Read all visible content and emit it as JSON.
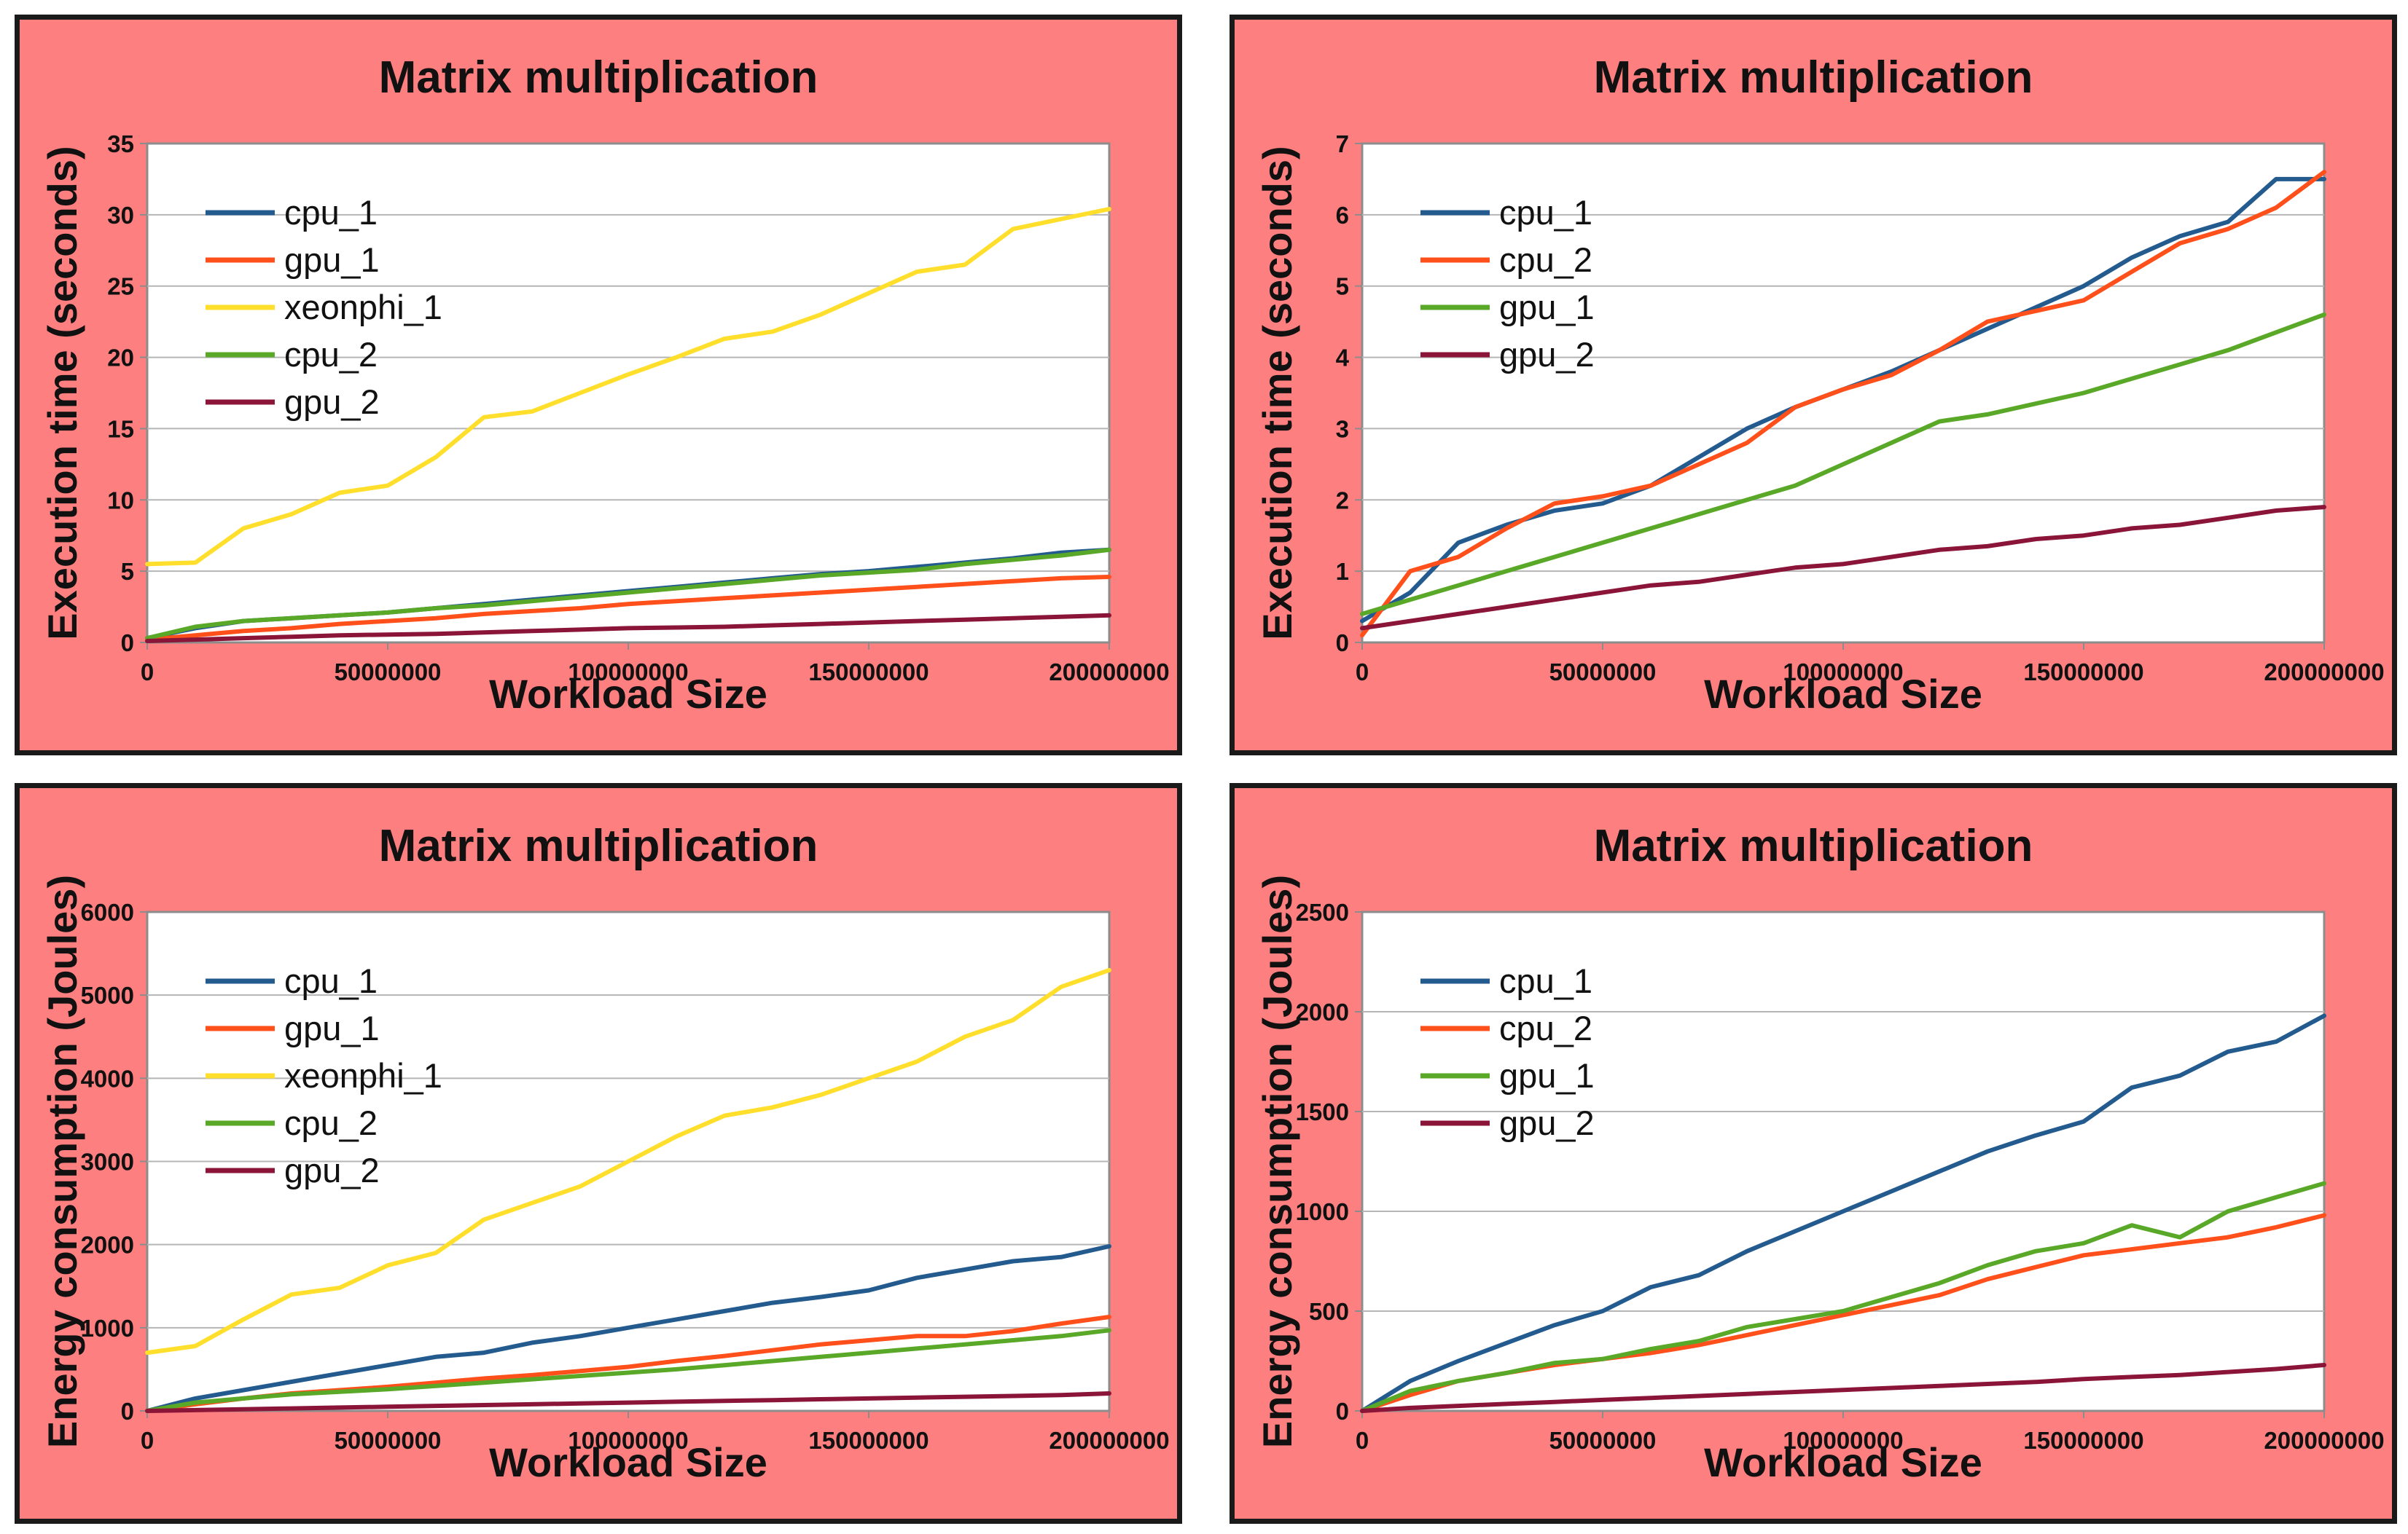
{
  "chart_data": [
    {
      "type": "line",
      "title": "Matrix multiplication",
      "xlabel": "Workload Size",
      "ylabel": "Execution time (seconds)",
      "xlim": [
        0,
        200000000
      ],
      "ylim": [
        0,
        35
      ],
      "xticks": [
        "0",
        "50000000",
        "100000000",
        "150000000",
        "200000000"
      ],
      "yticks": [
        "0",
        "5",
        "10",
        "15",
        "20",
        "25",
        "30",
        "35"
      ],
      "grid": true,
      "legend": "top-left",
      "x": [
        0,
        10000000,
        20000000,
        30000000,
        40000000,
        50000000,
        60000000,
        70000000,
        80000000,
        90000000,
        100000000,
        110000000,
        120000000,
        130000000,
        140000000,
        150000000,
        160000000,
        170000000,
        180000000,
        190000000,
        200000000
      ],
      "series": [
        {
          "name": "cpu_1",
          "color": "#245b8f",
          "values": [
            0.3,
            1.0,
            1.5,
            1.7,
            1.9,
            2.1,
            2.4,
            2.7,
            3.0,
            3.3,
            3.6,
            3.9,
            4.2,
            4.5,
            4.8,
            5.0,
            5.3,
            5.6,
            5.9,
            6.3,
            6.5
          ]
        },
        {
          "name": "gpu_1",
          "color": "#ff4f1a",
          "values": [
            0.2,
            0.5,
            0.8,
            1.0,
            1.3,
            1.5,
            1.7,
            2.0,
            2.2,
            2.4,
            2.7,
            2.9,
            3.1,
            3.3,
            3.5,
            3.7,
            3.9,
            4.1,
            4.3,
            4.5,
            4.6
          ]
        },
        {
          "name": "xeonphi_1",
          "color": "#ffdf2c",
          "values": [
            5.5,
            5.6,
            8.0,
            9.0,
            10.5,
            11.0,
            13.0,
            15.8,
            16.2,
            17.5,
            18.8,
            20.0,
            21.3,
            21.8,
            23.0,
            24.5,
            26.0,
            26.5,
            29.0,
            29.7,
            30.4
          ]
        },
        {
          "name": "cpu_2",
          "color": "#59a827",
          "values": [
            0.3,
            1.1,
            1.5,
            1.7,
            1.9,
            2.1,
            2.4,
            2.6,
            2.9,
            3.2,
            3.5,
            3.8,
            4.1,
            4.4,
            4.7,
            4.9,
            5.1,
            5.5,
            5.8,
            6.1,
            6.5
          ]
        },
        {
          "name": "gpu_2",
          "color": "#8a1538",
          "values": [
            0.1,
            0.2,
            0.3,
            0.4,
            0.5,
            0.55,
            0.6,
            0.7,
            0.8,
            0.9,
            1.0,
            1.05,
            1.1,
            1.2,
            1.3,
            1.4,
            1.5,
            1.6,
            1.7,
            1.8,
            1.9
          ]
        }
      ]
    },
    {
      "type": "line",
      "title": "Matrix multiplication",
      "xlabel": "Workload Size",
      "ylabel": "Execution time (seconds)",
      "xlim": [
        0,
        200000000
      ],
      "ylim": [
        0,
        7
      ],
      "xticks": [
        "0",
        "50000000",
        "100000000",
        "150000000",
        "200000000"
      ],
      "yticks": [
        "0",
        "1",
        "2",
        "3",
        "4",
        "5",
        "6",
        "7"
      ],
      "grid": true,
      "legend": "top-left",
      "x": [
        0,
        10000000,
        20000000,
        30000000,
        40000000,
        50000000,
        60000000,
        70000000,
        80000000,
        90000000,
        100000000,
        110000000,
        120000000,
        130000000,
        140000000,
        150000000,
        160000000,
        170000000,
        180000000,
        190000000,
        200000000
      ],
      "series": [
        {
          "name": "cpu_1",
          "color": "#245b8f",
          "values": [
            0.3,
            0.7,
            1.4,
            1.65,
            1.85,
            1.95,
            2.2,
            2.6,
            3.0,
            3.3,
            3.55,
            3.8,
            4.1,
            4.4,
            4.7,
            5.0,
            5.4,
            5.7,
            5.9,
            6.5,
            6.5
          ]
        },
        {
          "name": "cpu_2",
          "color": "#ff4f1a",
          "values": [
            0.1,
            1.0,
            1.2,
            1.6,
            1.95,
            2.05,
            2.2,
            2.5,
            2.8,
            3.3,
            3.55,
            3.75,
            4.1,
            4.5,
            4.65,
            4.8,
            5.2,
            5.6,
            5.8,
            6.1,
            6.6
          ]
        },
        {
          "name": "gpu_1",
          "color": "#59a827",
          "values": [
            0.4,
            0.6,
            0.8,
            1.0,
            1.2,
            1.4,
            1.6,
            1.8,
            2.0,
            2.2,
            2.5,
            2.8,
            3.1,
            3.2,
            3.35,
            3.5,
            3.7,
            3.9,
            4.1,
            4.35,
            4.6
          ]
        },
        {
          "name": "gpu_2",
          "color": "#8a1538",
          "values": [
            0.2,
            0.3,
            0.4,
            0.5,
            0.6,
            0.7,
            0.8,
            0.85,
            0.95,
            1.05,
            1.1,
            1.2,
            1.3,
            1.35,
            1.45,
            1.5,
            1.6,
            1.65,
            1.75,
            1.85,
            1.9
          ]
        }
      ]
    },
    {
      "type": "line",
      "title": "Matrix multiplication",
      "xlabel": "Workload Size",
      "ylabel": "Energy consumption (Joules)",
      "xlim": [
        0,
        200000000
      ],
      "ylim": [
        0,
        6000
      ],
      "xticks": [
        "0",
        "50000000",
        "100000000",
        "150000000",
        "200000000"
      ],
      "yticks": [
        "0",
        "1000",
        "2000",
        "3000",
        "4000",
        "5000",
        "6000"
      ],
      "grid": true,
      "legend": "top-left",
      "x": [
        0,
        10000000,
        20000000,
        30000000,
        40000000,
        50000000,
        60000000,
        70000000,
        80000000,
        90000000,
        100000000,
        110000000,
        120000000,
        130000000,
        140000000,
        150000000,
        160000000,
        170000000,
        180000000,
        190000000,
        200000000
      ],
      "series": [
        {
          "name": "cpu_1",
          "color": "#245b8f",
          "values": [
            0,
            150,
            250,
            350,
            450,
            550,
            650,
            700,
            820,
            900,
            1000,
            1100,
            1200,
            1300,
            1370,
            1450,
            1600,
            1700,
            1800,
            1850,
            1980
          ]
        },
        {
          "name": "gpu_1",
          "color": "#ff4f1a",
          "values": [
            0,
            80,
            150,
            210,
            250,
            290,
            340,
            390,
            430,
            480,
            530,
            600,
            660,
            730,
            800,
            850,
            900,
            900,
            960,
            1050,
            1130
          ]
        },
        {
          "name": "xeonphi_1",
          "color": "#ffdf2c",
          "values": [
            700,
            780,
            1100,
            1400,
            1480,
            1750,
            1900,
            2300,
            2500,
            2700,
            3000,
            3300,
            3550,
            3650,
            3800,
            4000,
            4200,
            4500,
            4700,
            5100,
            5300
          ]
        },
        {
          "name": "cpu_2",
          "color": "#59a827",
          "values": [
            0,
            100,
            150,
            200,
            230,
            260,
            300,
            340,
            380,
            420,
            460,
            500,
            550,
            600,
            650,
            700,
            750,
            800,
            850,
            900,
            970
          ]
        },
        {
          "name": "gpu_2",
          "color": "#8a1538",
          "values": [
            0,
            10,
            20,
            30,
            40,
            50,
            60,
            70,
            80,
            90,
            100,
            110,
            120,
            130,
            140,
            150,
            160,
            170,
            180,
            190,
            210
          ]
        }
      ]
    },
    {
      "type": "line",
      "title": "Matrix multiplication",
      "xlabel": "Workload Size",
      "ylabel": "Energy consumption (Joules)",
      "xlim": [
        0,
        200000000
      ],
      "ylim": [
        0,
        2500
      ],
      "xticks": [
        "0",
        "50000000",
        "100000000",
        "150000000",
        "200000000"
      ],
      "yticks": [
        "0",
        "500",
        "1000",
        "1500",
        "2000",
        "2500"
      ],
      "grid": true,
      "legend": "top-left",
      "x": [
        0,
        10000000,
        20000000,
        30000000,
        40000000,
        50000000,
        60000000,
        70000000,
        80000000,
        90000000,
        100000000,
        110000000,
        120000000,
        130000000,
        140000000,
        150000000,
        160000000,
        170000000,
        180000000,
        190000000,
        200000000
      ],
      "series": [
        {
          "name": "cpu_1",
          "color": "#245b8f",
          "values": [
            0,
            150,
            250,
            340,
            430,
            500,
            620,
            680,
            800,
            900,
            1000,
            1100,
            1200,
            1300,
            1380,
            1450,
            1620,
            1680,
            1800,
            1850,
            1980
          ]
        },
        {
          "name": "cpu_2",
          "color": "#ff4f1a",
          "values": [
            0,
            80,
            150,
            190,
            230,
            260,
            290,
            330,
            380,
            430,
            480,
            530,
            580,
            660,
            720,
            780,
            810,
            840,
            870,
            920,
            980
          ]
        },
        {
          "name": "gpu_1",
          "color": "#59a827",
          "values": [
            0,
            100,
            150,
            190,
            240,
            260,
            310,
            350,
            420,
            460,
            500,
            570,
            640,
            730,
            800,
            840,
            930,
            870,
            1000,
            1070,
            1140
          ]
        },
        {
          "name": "gpu_2",
          "color": "#8a1538",
          "values": [
            0,
            15,
            25,
            35,
            45,
            55,
            65,
            75,
            85,
            95,
            105,
            115,
            125,
            135,
            145,
            160,
            170,
            180,
            195,
            210,
            230
          ]
        }
      ]
    }
  ]
}
